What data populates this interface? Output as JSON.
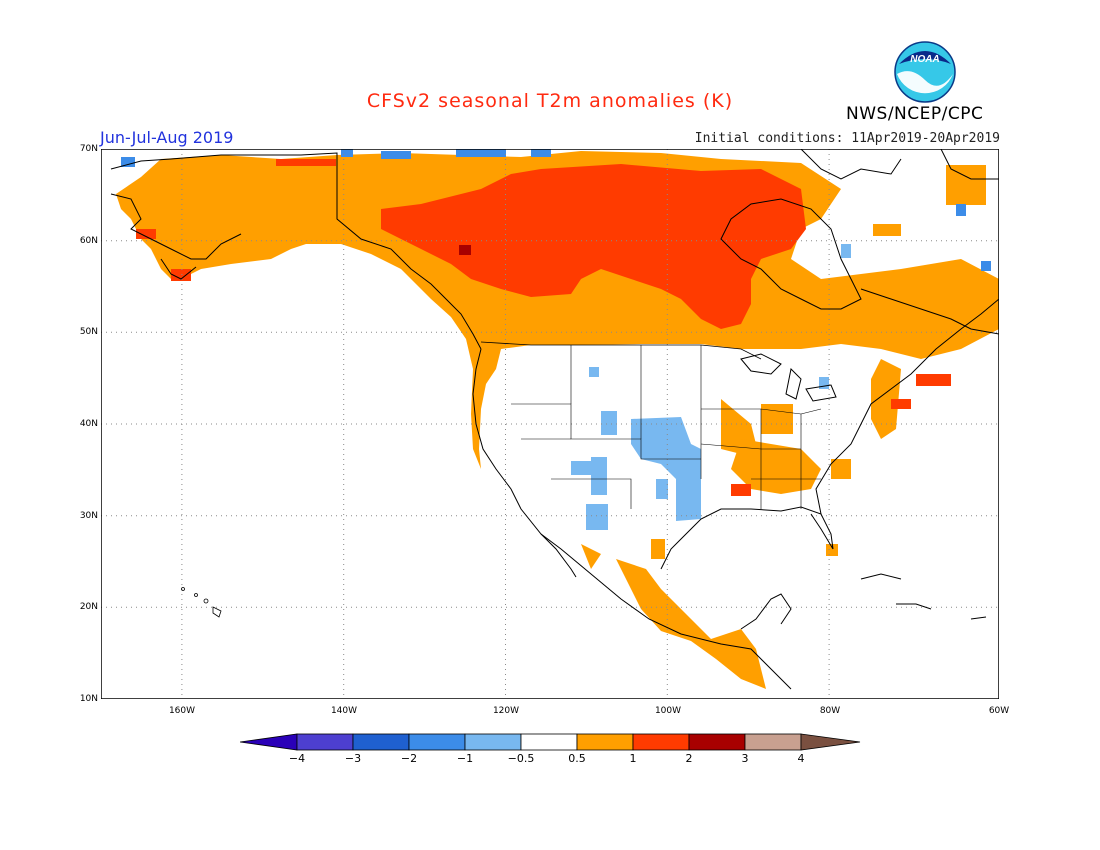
{
  "title": "CFSv2 seasonal T2m anomalies (K)",
  "season": "Jun-Jul-Aug 2019",
  "initial_conditions": "Initial conditions: 11Apr2019-20Apr2019",
  "agency": "NWS/NCEP/CPC",
  "logo_text": "NOAA",
  "map": {
    "region": "North America",
    "lat_labels": [
      "70N",
      "60N",
      "50N",
      "40N",
      "30N",
      "20N",
      "10N"
    ],
    "lon_labels": [
      "160W",
      "140W",
      "120W",
      "100W",
      "80W",
      "60W"
    ],
    "lat_range": [
      10,
      70
    ],
    "lon_range": [
      -171,
      -60
    ],
    "grid": "dotted, every 10 degrees"
  },
  "colorbar": {
    "labels": [
      "−4",
      "−3",
      "−2",
      "−1",
      "−0.5",
      "0.5",
      "1",
      "2",
      "3",
      "4"
    ],
    "colors": [
      "#2a00b8",
      "#4d3fd0",
      "#1f60d0",
      "#3c8ce8",
      "#78b8f0",
      "#ffffff",
      "#ff9f00",
      "#ff3b00",
      "#a80000",
      "#c8a090",
      "#7a5040"
    ]
  },
  "anomaly_colors": {
    "cool_light": "#78b8f0",
    "cool_mid": "#3c8ce8",
    "cool_dark": "#1f60d0",
    "warm_light": "#ff9f00",
    "warm_mid": "#ff3b00",
    "warm_dark": "#a80000"
  }
}
